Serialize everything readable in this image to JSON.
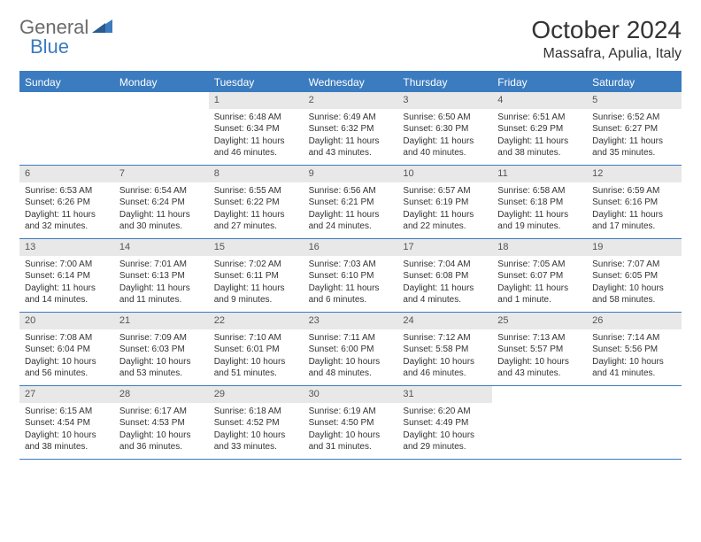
{
  "logo": {
    "part1": "General",
    "part2": "Blue"
  },
  "title": "October 2024",
  "location": "Massafra, Apulia, Italy",
  "colors": {
    "header_bg": "#3b7bbf",
    "header_text": "#ffffff",
    "daynum_bg": "#e8e8e8",
    "text": "#333333",
    "logo_gray": "#6b6b6b",
    "logo_blue": "#3b7bbf"
  },
  "day_headers": [
    "Sunday",
    "Monday",
    "Tuesday",
    "Wednesday",
    "Thursday",
    "Friday",
    "Saturday"
  ],
  "weeks": [
    [
      {
        "empty": true
      },
      {
        "empty": true
      },
      {
        "num": "1",
        "sunrise": "Sunrise: 6:48 AM",
        "sunset": "Sunset: 6:34 PM",
        "day1": "Daylight: 11 hours",
        "day2": "and 46 minutes."
      },
      {
        "num": "2",
        "sunrise": "Sunrise: 6:49 AM",
        "sunset": "Sunset: 6:32 PM",
        "day1": "Daylight: 11 hours",
        "day2": "and 43 minutes."
      },
      {
        "num": "3",
        "sunrise": "Sunrise: 6:50 AM",
        "sunset": "Sunset: 6:30 PM",
        "day1": "Daylight: 11 hours",
        "day2": "and 40 minutes."
      },
      {
        "num": "4",
        "sunrise": "Sunrise: 6:51 AM",
        "sunset": "Sunset: 6:29 PM",
        "day1": "Daylight: 11 hours",
        "day2": "and 38 minutes."
      },
      {
        "num": "5",
        "sunrise": "Sunrise: 6:52 AM",
        "sunset": "Sunset: 6:27 PM",
        "day1": "Daylight: 11 hours",
        "day2": "and 35 minutes."
      }
    ],
    [
      {
        "num": "6",
        "sunrise": "Sunrise: 6:53 AM",
        "sunset": "Sunset: 6:26 PM",
        "day1": "Daylight: 11 hours",
        "day2": "and 32 minutes."
      },
      {
        "num": "7",
        "sunrise": "Sunrise: 6:54 AM",
        "sunset": "Sunset: 6:24 PM",
        "day1": "Daylight: 11 hours",
        "day2": "and 30 minutes."
      },
      {
        "num": "8",
        "sunrise": "Sunrise: 6:55 AM",
        "sunset": "Sunset: 6:22 PM",
        "day1": "Daylight: 11 hours",
        "day2": "and 27 minutes."
      },
      {
        "num": "9",
        "sunrise": "Sunrise: 6:56 AM",
        "sunset": "Sunset: 6:21 PM",
        "day1": "Daylight: 11 hours",
        "day2": "and 24 minutes."
      },
      {
        "num": "10",
        "sunrise": "Sunrise: 6:57 AM",
        "sunset": "Sunset: 6:19 PM",
        "day1": "Daylight: 11 hours",
        "day2": "and 22 minutes."
      },
      {
        "num": "11",
        "sunrise": "Sunrise: 6:58 AM",
        "sunset": "Sunset: 6:18 PM",
        "day1": "Daylight: 11 hours",
        "day2": "and 19 minutes."
      },
      {
        "num": "12",
        "sunrise": "Sunrise: 6:59 AM",
        "sunset": "Sunset: 6:16 PM",
        "day1": "Daylight: 11 hours",
        "day2": "and 17 minutes."
      }
    ],
    [
      {
        "num": "13",
        "sunrise": "Sunrise: 7:00 AM",
        "sunset": "Sunset: 6:14 PM",
        "day1": "Daylight: 11 hours",
        "day2": "and 14 minutes."
      },
      {
        "num": "14",
        "sunrise": "Sunrise: 7:01 AM",
        "sunset": "Sunset: 6:13 PM",
        "day1": "Daylight: 11 hours",
        "day2": "and 11 minutes."
      },
      {
        "num": "15",
        "sunrise": "Sunrise: 7:02 AM",
        "sunset": "Sunset: 6:11 PM",
        "day1": "Daylight: 11 hours",
        "day2": "and 9 minutes."
      },
      {
        "num": "16",
        "sunrise": "Sunrise: 7:03 AM",
        "sunset": "Sunset: 6:10 PM",
        "day1": "Daylight: 11 hours",
        "day2": "and 6 minutes."
      },
      {
        "num": "17",
        "sunrise": "Sunrise: 7:04 AM",
        "sunset": "Sunset: 6:08 PM",
        "day1": "Daylight: 11 hours",
        "day2": "and 4 minutes."
      },
      {
        "num": "18",
        "sunrise": "Sunrise: 7:05 AM",
        "sunset": "Sunset: 6:07 PM",
        "day1": "Daylight: 11 hours",
        "day2": "and 1 minute."
      },
      {
        "num": "19",
        "sunrise": "Sunrise: 7:07 AM",
        "sunset": "Sunset: 6:05 PM",
        "day1": "Daylight: 10 hours",
        "day2": "and 58 minutes."
      }
    ],
    [
      {
        "num": "20",
        "sunrise": "Sunrise: 7:08 AM",
        "sunset": "Sunset: 6:04 PM",
        "day1": "Daylight: 10 hours",
        "day2": "and 56 minutes."
      },
      {
        "num": "21",
        "sunrise": "Sunrise: 7:09 AM",
        "sunset": "Sunset: 6:03 PM",
        "day1": "Daylight: 10 hours",
        "day2": "and 53 minutes."
      },
      {
        "num": "22",
        "sunrise": "Sunrise: 7:10 AM",
        "sunset": "Sunset: 6:01 PM",
        "day1": "Daylight: 10 hours",
        "day2": "and 51 minutes."
      },
      {
        "num": "23",
        "sunrise": "Sunrise: 7:11 AM",
        "sunset": "Sunset: 6:00 PM",
        "day1": "Daylight: 10 hours",
        "day2": "and 48 minutes."
      },
      {
        "num": "24",
        "sunrise": "Sunrise: 7:12 AM",
        "sunset": "Sunset: 5:58 PM",
        "day1": "Daylight: 10 hours",
        "day2": "and 46 minutes."
      },
      {
        "num": "25",
        "sunrise": "Sunrise: 7:13 AM",
        "sunset": "Sunset: 5:57 PM",
        "day1": "Daylight: 10 hours",
        "day2": "and 43 minutes."
      },
      {
        "num": "26",
        "sunrise": "Sunrise: 7:14 AM",
        "sunset": "Sunset: 5:56 PM",
        "day1": "Daylight: 10 hours",
        "day2": "and 41 minutes."
      }
    ],
    [
      {
        "num": "27",
        "sunrise": "Sunrise: 6:15 AM",
        "sunset": "Sunset: 4:54 PM",
        "day1": "Daylight: 10 hours",
        "day2": "and 38 minutes."
      },
      {
        "num": "28",
        "sunrise": "Sunrise: 6:17 AM",
        "sunset": "Sunset: 4:53 PM",
        "day1": "Daylight: 10 hours",
        "day2": "and 36 minutes."
      },
      {
        "num": "29",
        "sunrise": "Sunrise: 6:18 AM",
        "sunset": "Sunset: 4:52 PM",
        "day1": "Daylight: 10 hours",
        "day2": "and 33 minutes."
      },
      {
        "num": "30",
        "sunrise": "Sunrise: 6:19 AM",
        "sunset": "Sunset: 4:50 PM",
        "day1": "Daylight: 10 hours",
        "day2": "and 31 minutes."
      },
      {
        "num": "31",
        "sunrise": "Sunrise: 6:20 AM",
        "sunset": "Sunset: 4:49 PM",
        "day1": "Daylight: 10 hours",
        "day2": "and 29 minutes."
      },
      {
        "empty": true
      },
      {
        "empty": true
      }
    ]
  ]
}
